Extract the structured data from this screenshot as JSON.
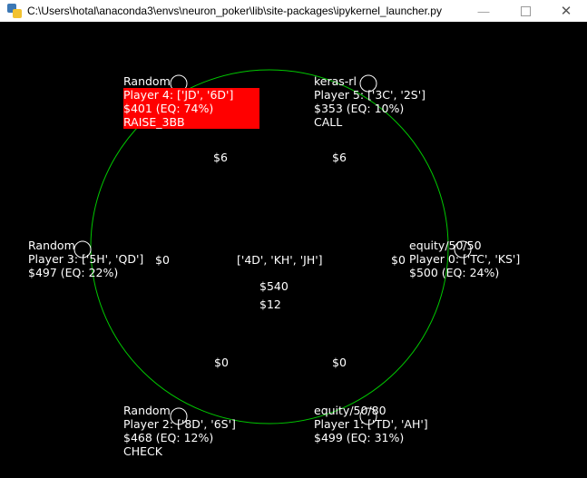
{
  "window": {
    "title": "C:\\Users\\hotal\\anaconda3\\envs\\neuron_poker\\lib\\site-packages\\ipykernel_launcher.py",
    "min_label": "—",
    "close_label": "✕"
  },
  "colors": {
    "background": "#000000",
    "table_outline": "#00c800",
    "active_player_bg": "#ff0000",
    "text": "#ffffff"
  },
  "community": {
    "board": "['4D', 'KH', 'JH']",
    "pot": "$540",
    "current_bet": "$12"
  },
  "players": [
    {
      "seat": "top-left",
      "strategy": "Random",
      "label": "Player 4: ['JD', '6D']",
      "stack": "$401 (EQ: 74%)",
      "action": "RAISE_3BB",
      "active": true
    },
    {
      "seat": "top-right",
      "strategy": "keras-rl",
      "label": "Player 5: ['3C', '2S']",
      "stack": "$353 (EQ: 10%)",
      "action": "CALL",
      "active": false
    },
    {
      "seat": "left",
      "strategy": "Random",
      "label": "Player 3: ['5H', 'QD']",
      "stack": "$497 (EQ: 22%)",
      "action": "",
      "active": false
    },
    {
      "seat": "right",
      "strategy": "equity/50/50",
      "label": "Player 0: ['TC', 'KS']",
      "stack": "$500 (EQ: 24%)",
      "action": "",
      "active": false
    },
    {
      "seat": "bottom-left",
      "strategy": "Random",
      "label": "Player 2: ['8D', '6S']",
      "stack": "$468 (EQ: 12%)",
      "action": "CHECK",
      "active": false
    },
    {
      "seat": "bottom-right",
      "strategy": "equity/50/80",
      "label": "Player 1: ['TD', 'AH']",
      "stack": "$499 (EQ: 31%)",
      "action": "",
      "active": false
    }
  ],
  "bets": {
    "top_left": "$6",
    "top_right": "$6",
    "left": "$0",
    "right": "$0",
    "bottom_left": "$0",
    "bottom_right": "$0"
  }
}
